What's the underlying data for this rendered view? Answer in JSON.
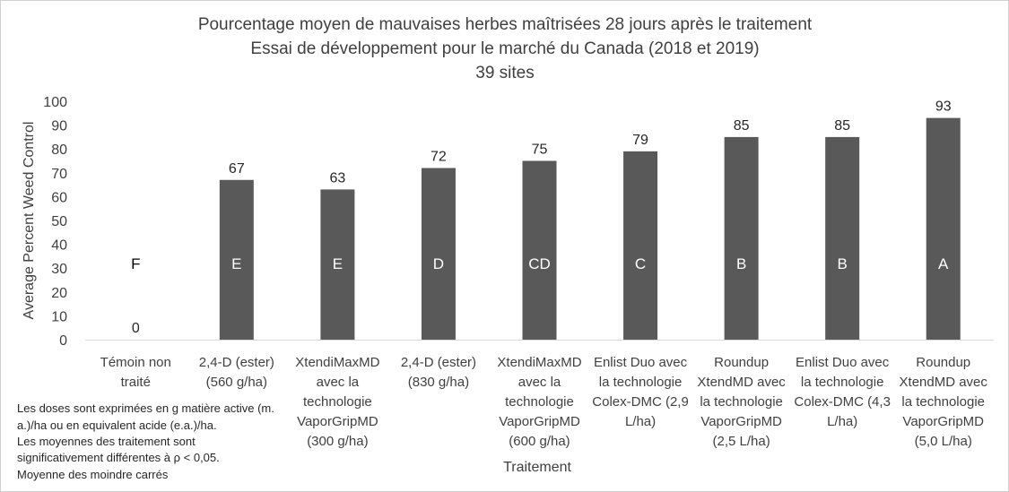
{
  "chart_data": {
    "type": "bar",
    "title_lines": [
      "Pourcentage moyen de mauvaises herbes maîtrisées 28 jours après le traitement",
      "Essai de développement pour le marché du Canada (2018 et 2019)",
      "39 sites"
    ],
    "xlabel": "Traitement",
    "ylabel": "Average Percent Weed Control",
    "ylim": [
      0,
      100
    ],
    "yticks": [
      0,
      10,
      20,
      30,
      40,
      50,
      60,
      70,
      80,
      90,
      100
    ],
    "grid": false,
    "legend": "none",
    "categories": [
      [
        "Témoin non",
        "traité"
      ],
      [
        "2,4-D (ester)",
        "(560 g/ha)"
      ],
      [
        "XtendiMaxMD",
        "avec la",
        "technologie",
        "VaporGripMD",
        "(300 g/ha)"
      ],
      [
        "2,4-D (ester)",
        "(830 g/ha)"
      ],
      [
        "XtendiMaxMD",
        "avec la",
        "technologie",
        "VaporGripMD",
        "(600 g/ha)"
      ],
      [
        "Enlist Duo avec",
        "la technologie",
        "Colex-DMC (2,9",
        "L/ha)"
      ],
      [
        "Roundup",
        "XtendMD avec",
        "la technologie",
        "VaporGripMD",
        "(2,5 L/ha)"
      ],
      [
        "Enlist Duo avec",
        "la technologie",
        "Colex-DMC (4,3",
        "L/ha)"
      ],
      [
        "Roundup",
        "XtendMD avec",
        "la technologie",
        "VaporGripMD",
        "(5,0 L/ha)"
      ]
    ],
    "values": [
      0,
      67,
      63,
      72,
      75,
      79,
      85,
      85,
      93
    ],
    "significance_letters": [
      "F",
      "E",
      "E",
      "D",
      "CD",
      "C",
      "B",
      "B",
      "A"
    ],
    "bar_color": "#595959",
    "letter_color_on_bar": "#ffffff",
    "letter_color_off_bar": "#000000"
  },
  "footnotes": [
    "Les doses sont exprimées en g matière active (m.",
    "a.)/ha ou en equivalent acide (e.a.)/ha.",
    "Les moyennes des traitement sont",
    "significativement différentes à ρ < 0,05.",
    "Moyenne des moindre carrés"
  ]
}
